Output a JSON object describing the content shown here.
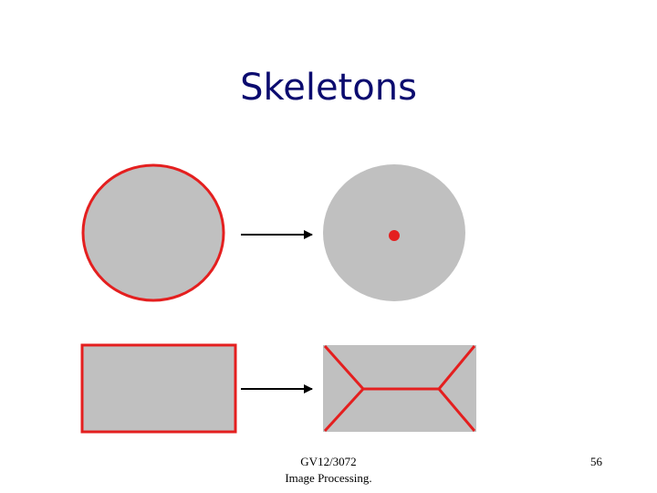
{
  "slide": {
    "title": "Skeletons",
    "footer": {
      "course": "GV12/3072",
      "subject": "Image Processing."
    },
    "slide_number": "56"
  },
  "diagram": {
    "colors": {
      "shape_fill": "#c0c0c0",
      "boundary": "#e41f1f",
      "skeleton": "#e41f1f",
      "arrow": "#000000",
      "title": "#0b0b6f"
    },
    "examples": [
      {
        "shape": "circle",
        "input": "shape outlined by boundary",
        "output": "skeleton is a single center point"
      },
      {
        "shape": "rectangle",
        "input": "shape outlined by boundary",
        "output": "skeleton is a central horizontal segment with diagonal branches to the four corners"
      }
    ]
  }
}
